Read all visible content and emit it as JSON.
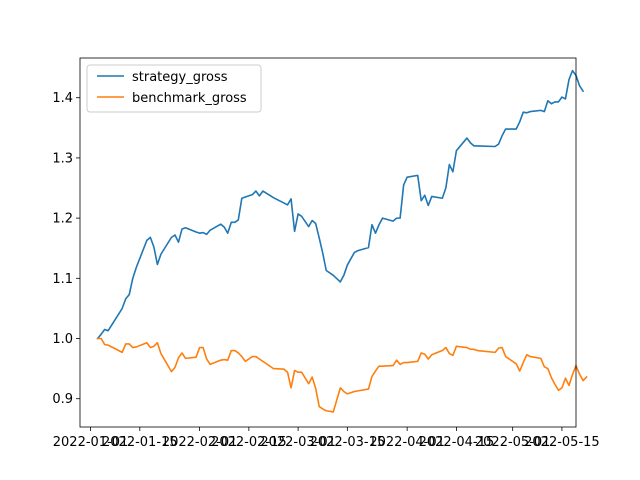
{
  "chart_data": {
    "type": "line",
    "title": "",
    "xlabel": "",
    "ylabel": "",
    "xlim": [
      "2021-12-29",
      "2022-05-19"
    ],
    "ylim": [
      0.853,
      1.466
    ],
    "x_ticks": [
      "2022-01-01",
      "2022-01-15",
      "2022-02-01",
      "2022-02-15",
      "2022-03-01",
      "2022-03-15",
      "2022-04-01",
      "2022-04-15",
      "2022-05-01",
      "2022-05-15"
    ],
    "y_ticks": [
      0.9,
      1.0,
      1.1,
      1.2,
      1.3,
      1.4
    ],
    "grid": false,
    "legend": "upper-left",
    "series": [
      {
        "name": "strategy_gross",
        "color": "#1f77b4",
        "points": [
          [
            "2022-01-03",
            1.0
          ],
          [
            "2022-01-04",
            1.007
          ],
          [
            "2022-01-05",
            1.015
          ],
          [
            "2022-01-06",
            1.013
          ],
          [
            "2022-01-10",
            1.05
          ],
          [
            "2022-01-11",
            1.066
          ],
          [
            "2022-01-12",
            1.073
          ],
          [
            "2022-01-13",
            1.1
          ],
          [
            "2022-01-14",
            1.118
          ],
          [
            "2022-01-17",
            1.163
          ],
          [
            "2022-01-18",
            1.168
          ],
          [
            "2022-01-19",
            1.152
          ],
          [
            "2022-01-20",
            1.123
          ],
          [
            "2022-01-21",
            1.14
          ],
          [
            "2022-01-24",
            1.168
          ],
          [
            "2022-01-25",
            1.172
          ],
          [
            "2022-01-26",
            1.16
          ],
          [
            "2022-01-27",
            1.182
          ],
          [
            "2022-01-28",
            1.184
          ],
          [
            "2022-01-31",
            1.177
          ],
          [
            "2022-02-01",
            1.175
          ],
          [
            "2022-02-02",
            1.176
          ],
          [
            "2022-02-03",
            1.173
          ],
          [
            "2022-02-04",
            1.18
          ],
          [
            "2022-02-07",
            1.19
          ],
          [
            "2022-02-08",
            1.185
          ],
          [
            "2022-02-09",
            1.175
          ],
          [
            "2022-02-10",
            1.193
          ],
          [
            "2022-02-11",
            1.193
          ],
          [
            "2022-02-12",
            1.197
          ],
          [
            "2022-02-13",
            1.233
          ],
          [
            "2022-02-14",
            1.235
          ],
          [
            "2022-02-16",
            1.239
          ],
          [
            "2022-02-17",
            1.245
          ],
          [
            "2022-02-18",
            1.237
          ],
          [
            "2022-02-19",
            1.245
          ],
          [
            "2022-02-22",
            1.234
          ],
          [
            "2022-02-25",
            1.225
          ],
          [
            "2022-02-26",
            1.222
          ],
          [
            "2022-02-27",
            1.232
          ],
          [
            "2022-02-28",
            1.178
          ],
          [
            "2022-03-01",
            1.207
          ],
          [
            "2022-03-02",
            1.203
          ],
          [
            "2022-03-04",
            1.186
          ],
          [
            "2022-03-05",
            1.196
          ],
          [
            "2022-03-06",
            1.191
          ],
          [
            "2022-03-07",
            1.167
          ],
          [
            "2022-03-08",
            1.142
          ],
          [
            "2022-03-09",
            1.113
          ],
          [
            "2022-03-11",
            1.105
          ],
          [
            "2022-03-13",
            1.094
          ],
          [
            "2022-03-14",
            1.105
          ],
          [
            "2022-03-15",
            1.122
          ],
          [
            "2022-03-17",
            1.143
          ],
          [
            "2022-03-18",
            1.146
          ],
          [
            "2022-03-21",
            1.151
          ],
          [
            "2022-03-22",
            1.189
          ],
          [
            "2022-03-23",
            1.175
          ],
          [
            "2022-03-24",
            1.189
          ],
          [
            "2022-03-25",
            1.2
          ],
          [
            "2022-03-28",
            1.195
          ],
          [
            "2022-03-29",
            1.2
          ],
          [
            "2022-03-30",
            1.2
          ],
          [
            "2022-03-31",
            1.255
          ],
          [
            "2022-04-01",
            1.268
          ],
          [
            "2022-04-04",
            1.271
          ],
          [
            "2022-04-05",
            1.229
          ],
          [
            "2022-04-06",
            1.238
          ],
          [
            "2022-04-07",
            1.221
          ],
          [
            "2022-04-08",
            1.236
          ],
          [
            "2022-04-11",
            1.233
          ],
          [
            "2022-04-12",
            1.25
          ],
          [
            "2022-04-13",
            1.289
          ],
          [
            "2022-04-14",
            1.277
          ],
          [
            "2022-04-15",
            1.312
          ],
          [
            "2022-04-18",
            1.333
          ],
          [
            "2022-04-19",
            1.325
          ],
          [
            "2022-04-20",
            1.32
          ],
          [
            "2022-04-21",
            1.32
          ],
          [
            "2022-04-26",
            1.319
          ],
          [
            "2022-04-27",
            1.323
          ],
          [
            "2022-04-28",
            1.337
          ],
          [
            "2022-04-29",
            1.348
          ],
          [
            "2022-05-02",
            1.348
          ],
          [
            "2022-05-03",
            1.36
          ],
          [
            "2022-05-04",
            1.376
          ],
          [
            "2022-05-05",
            1.375
          ],
          [
            "2022-05-06",
            1.377
          ],
          [
            "2022-05-09",
            1.379
          ],
          [
            "2022-05-10",
            1.377
          ],
          [
            "2022-05-11",
            1.395
          ],
          [
            "2022-05-12",
            1.39
          ],
          [
            "2022-05-13",
            1.393
          ],
          [
            "2022-05-14",
            1.393
          ],
          [
            "2022-05-15",
            1.401
          ],
          [
            "2022-05-16",
            1.398
          ],
          [
            "2022-05-17",
            1.43
          ],
          [
            "2022-05-18",
            1.445
          ],
          [
            "2022-05-19",
            1.437
          ],
          [
            "2022-05-20",
            1.42
          ],
          [
            "2022-05-21",
            1.411
          ]
        ]
      },
      {
        "name": "benchmark_gross",
        "color": "#ff7f0e",
        "points": [
          [
            "2022-01-03",
            1.0
          ],
          [
            "2022-01-04",
            1.0
          ],
          [
            "2022-01-05",
            0.99
          ],
          [
            "2022-01-06",
            0.989
          ],
          [
            "2022-01-10",
            0.977
          ],
          [
            "2022-01-11",
            0.991
          ],
          [
            "2022-01-12",
            0.991
          ],
          [
            "2022-01-13",
            0.985
          ],
          [
            "2022-01-14",
            0.986
          ],
          [
            "2022-01-17",
            0.993
          ],
          [
            "2022-01-18",
            0.985
          ],
          [
            "2022-01-19",
            0.987
          ],
          [
            "2022-01-20",
            0.993
          ],
          [
            "2022-01-21",
            0.975
          ],
          [
            "2022-01-24",
            0.945
          ],
          [
            "2022-01-25",
            0.952
          ],
          [
            "2022-01-26",
            0.968
          ],
          [
            "2022-01-27",
            0.976
          ],
          [
            "2022-01-28",
            0.967
          ],
          [
            "2022-01-31",
            0.969
          ],
          [
            "2022-02-01",
            0.985
          ],
          [
            "2022-02-02",
            0.985
          ],
          [
            "2022-02-03",
            0.966
          ],
          [
            "2022-02-04",
            0.957
          ],
          [
            "2022-02-07",
            0.964
          ],
          [
            "2022-02-08",
            0.965
          ],
          [
            "2022-02-09",
            0.964
          ],
          [
            "2022-02-10",
            0.98
          ],
          [
            "2022-02-11",
            0.98
          ],
          [
            "2022-02-12",
            0.976
          ],
          [
            "2022-02-13",
            0.97
          ],
          [
            "2022-02-14",
            0.962
          ],
          [
            "2022-02-16",
            0.97
          ],
          [
            "2022-02-17",
            0.97
          ],
          [
            "2022-02-18",
            0.966
          ],
          [
            "2022-02-19",
            0.962
          ],
          [
            "2022-02-22",
            0.95
          ],
          [
            "2022-02-25",
            0.949
          ],
          [
            "2022-02-26",
            0.944
          ],
          [
            "2022-02-27",
            0.918
          ],
          [
            "2022-02-28",
            0.947
          ],
          [
            "2022-03-01",
            0.944
          ],
          [
            "2022-03-02",
            0.944
          ],
          [
            "2022-03-04",
            0.925
          ],
          [
            "2022-03-05",
            0.936
          ],
          [
            "2022-03-06",
            0.917
          ],
          [
            "2022-03-07",
            0.887
          ],
          [
            "2022-03-08",
            0.883
          ],
          [
            "2022-03-09",
            0.88
          ],
          [
            "2022-03-11",
            0.878
          ],
          [
            "2022-03-13",
            0.918
          ],
          [
            "2022-03-14",
            0.912
          ],
          [
            "2022-03-15",
            0.908
          ],
          [
            "2022-03-17",
            0.912
          ],
          [
            "2022-03-18",
            0.913
          ],
          [
            "2022-03-21",
            0.916
          ],
          [
            "2022-03-22",
            0.937
          ],
          [
            "2022-03-23",
            0.946
          ],
          [
            "2022-03-24",
            0.954
          ],
          [
            "2022-03-25",
            0.954
          ],
          [
            "2022-03-28",
            0.955
          ],
          [
            "2022-03-29",
            0.964
          ],
          [
            "2022-03-30",
            0.957
          ],
          [
            "2022-03-31",
            0.96
          ],
          [
            "2022-04-01",
            0.96
          ],
          [
            "2022-04-04",
            0.962
          ],
          [
            "2022-04-05",
            0.976
          ],
          [
            "2022-04-06",
            0.974
          ],
          [
            "2022-04-07",
            0.966
          ],
          [
            "2022-04-08",
            0.973
          ],
          [
            "2022-04-11",
            0.98
          ],
          [
            "2022-04-12",
            0.985
          ],
          [
            "2022-04-13",
            0.975
          ],
          [
            "2022-04-14",
            0.972
          ],
          [
            "2022-04-15",
            0.987
          ],
          [
            "2022-04-18",
            0.985
          ],
          [
            "2022-04-19",
            0.982
          ],
          [
            "2022-04-20",
            0.982
          ],
          [
            "2022-04-21",
            0.98
          ],
          [
            "2022-04-26",
            0.977
          ],
          [
            "2022-04-27",
            0.984
          ],
          [
            "2022-04-28",
            0.985
          ],
          [
            "2022-04-29",
            0.97
          ],
          [
            "2022-05-02",
            0.958
          ],
          [
            "2022-05-03",
            0.946
          ],
          [
            "2022-05-04",
            0.96
          ],
          [
            "2022-05-05",
            0.973
          ],
          [
            "2022-05-06",
            0.97
          ],
          [
            "2022-05-09",
            0.967
          ],
          [
            "2022-05-10",
            0.953
          ],
          [
            "2022-05-11",
            0.95
          ],
          [
            "2022-05-12",
            0.935
          ],
          [
            "2022-05-13",
            0.924
          ],
          [
            "2022-05-14",
            0.914
          ],
          [
            "2022-05-15",
            0.918
          ],
          [
            "2022-05-16",
            0.934
          ],
          [
            "2022-05-17",
            0.922
          ],
          [
            "2022-05-18",
            0.94
          ],
          [
            "2022-05-19",
            0.955
          ],
          [
            "2022-05-20",
            0.941
          ],
          [
            "2022-05-21",
            0.93
          ],
          [
            "2022-05-22",
            0.936
          ]
        ]
      }
    ]
  }
}
